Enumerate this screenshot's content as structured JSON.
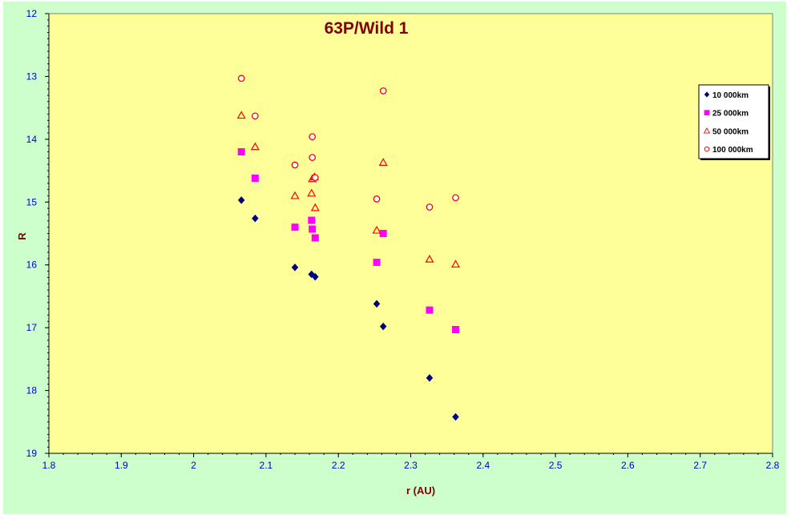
{
  "chart_data": {
    "type": "scatter",
    "title": "63P/Wild 1",
    "xlabel": "r (AU)",
    "ylabel": "R",
    "xlim": [
      1.8,
      2.8
    ],
    "ylim": [
      12,
      19
    ],
    "y_inverted": true,
    "x_ticks": [
      "1.8",
      "1.9",
      "2",
      "2.1",
      "2.2",
      "2.3",
      "2.4",
      "2.5",
      "2.6",
      "2.7",
      "2.8"
    ],
    "y_ticks": [
      "12",
      "13",
      "14",
      "15",
      "16",
      "17",
      "18",
      "19"
    ],
    "background": "#ffff99",
    "outer_background": "#ccffcc",
    "legend_position": "right",
    "series": [
      {
        "name": "10 000km",
        "marker": "diamond",
        "color": "#000080",
        "points": [
          [
            2.066,
            14.97
          ],
          [
            2.085,
            15.26
          ],
          [
            2.14,
            16.04
          ],
          [
            2.163,
            16.15
          ],
          [
            2.168,
            16.19
          ],
          [
            2.253,
            16.62
          ],
          [
            2.262,
            16.98
          ],
          [
            2.326,
            17.8
          ],
          [
            2.362,
            18.42
          ]
        ]
      },
      {
        "name": "25 000km",
        "marker": "square",
        "color": "#ff00ff",
        "points": [
          [
            2.066,
            14.2
          ],
          [
            2.085,
            14.62
          ],
          [
            2.14,
            15.4
          ],
          [
            2.163,
            15.29
          ],
          [
            2.164,
            15.43
          ],
          [
            2.168,
            15.57
          ],
          [
            2.253,
            15.96
          ],
          [
            2.262,
            15.5
          ],
          [
            2.326,
            16.72
          ],
          [
            2.362,
            17.03
          ]
        ]
      },
      {
        "name": "50 000km",
        "marker": "triangle",
        "color": "#ff0000",
        "points": [
          [
            2.066,
            13.62
          ],
          [
            2.085,
            14.12
          ],
          [
            2.14,
            14.9
          ],
          [
            2.163,
            14.86
          ],
          [
            2.164,
            14.63
          ],
          [
            2.167,
            14.6
          ],
          [
            2.168,
            15.09
          ],
          [
            2.253,
            15.45
          ],
          [
            2.262,
            14.37
          ],
          [
            2.326,
            15.91
          ],
          [
            2.362,
            15.99
          ]
        ]
      },
      {
        "name": "100 000km",
        "marker": "circle",
        "color": "#ff0000",
        "points": [
          [
            2.066,
            13.03
          ],
          [
            2.085,
            13.63
          ],
          [
            2.14,
            14.41
          ],
          [
            2.164,
            13.96
          ],
          [
            2.164,
            14.29
          ],
          [
            2.168,
            14.61
          ],
          [
            2.253,
            14.95
          ],
          [
            2.262,
            13.23
          ],
          [
            2.326,
            15.08
          ],
          [
            2.362,
            14.93
          ]
        ]
      }
    ]
  }
}
